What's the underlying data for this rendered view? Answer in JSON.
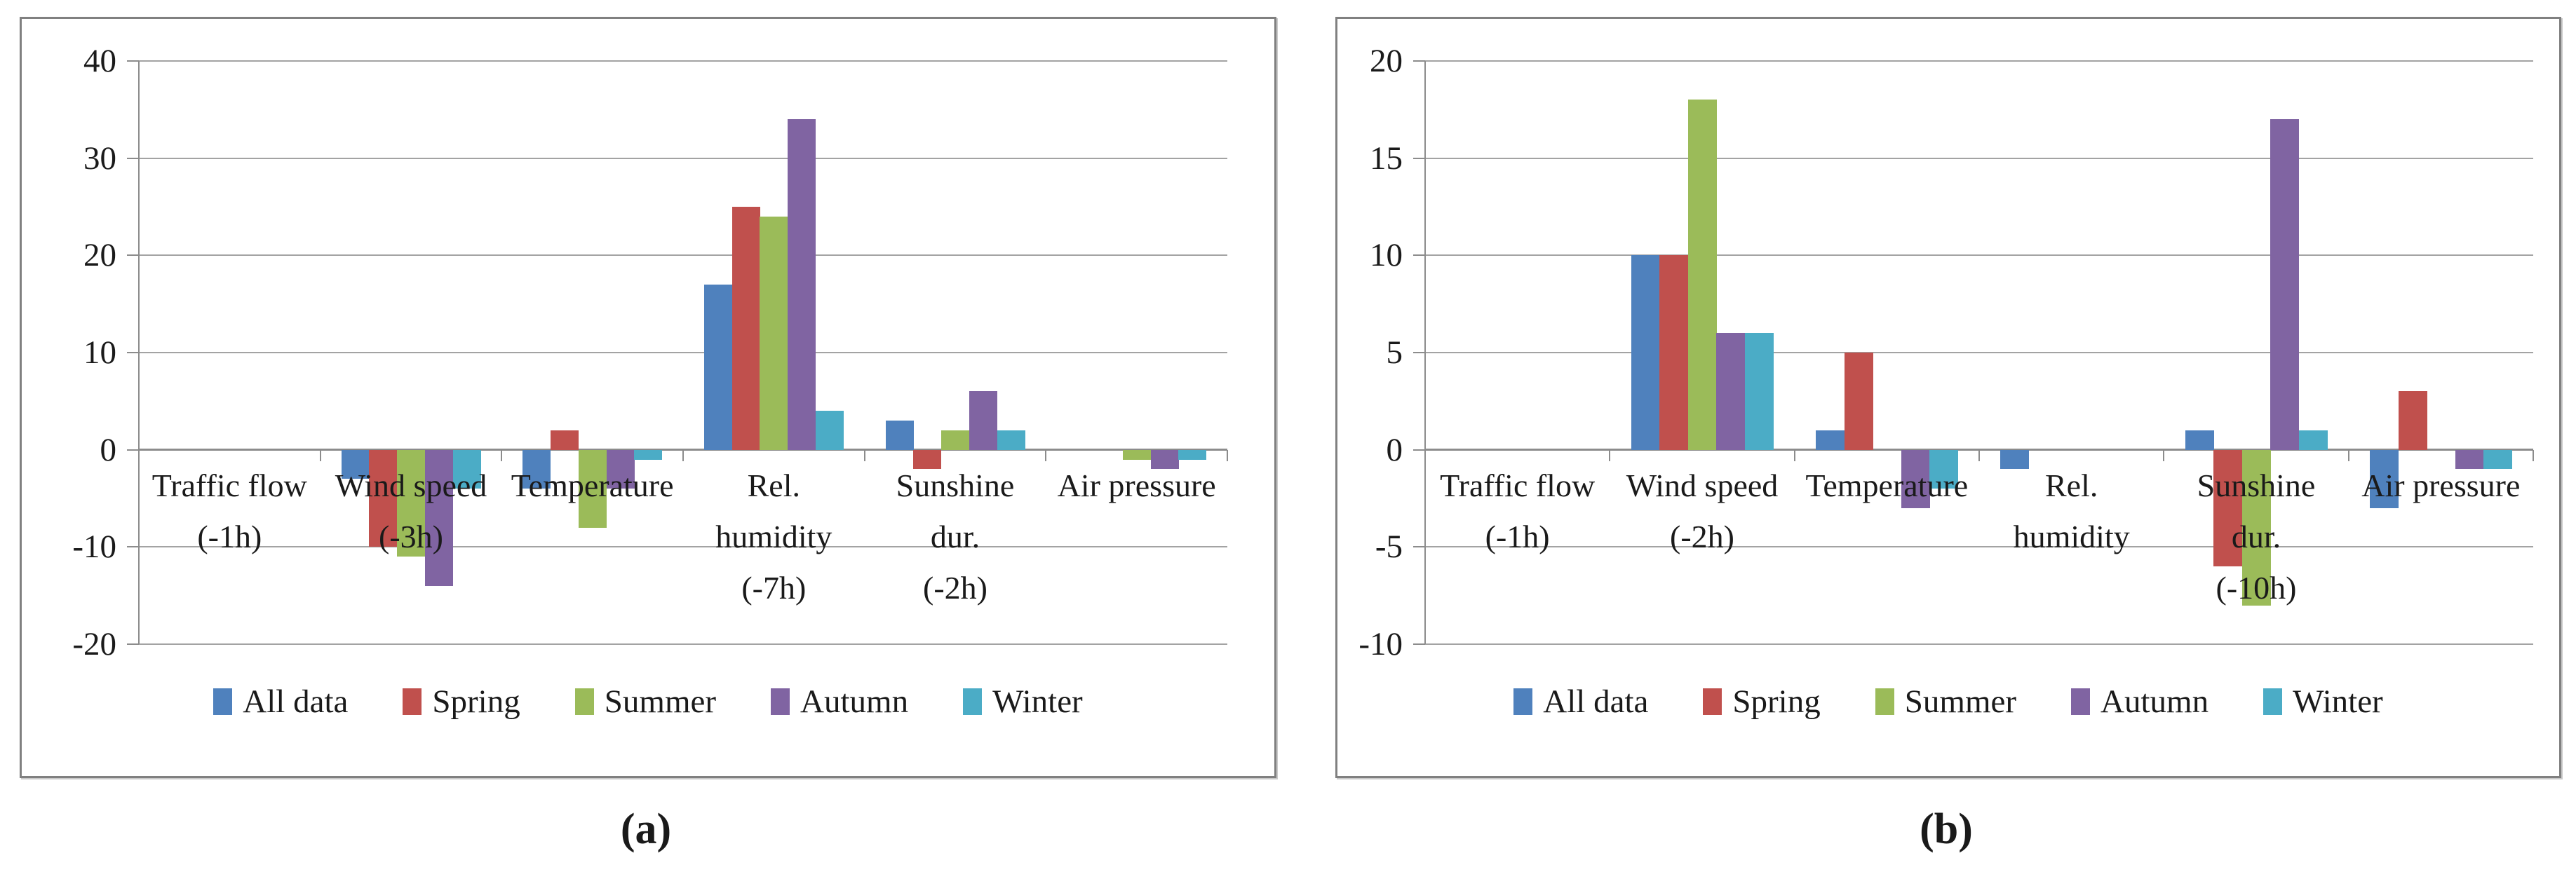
{
  "figure": {
    "caption_a": "(a)",
    "caption_b": "(b)",
    "legend": [
      "All data",
      "Spring",
      "Summer",
      "Autumn",
      "Winter"
    ],
    "series_colors": [
      "#4F81BD",
      "#C0504D",
      "#9BBB59",
      "#8064A2",
      "#4BACC6"
    ],
    "gridline_color": "#a3a3a3",
    "axis_color": "#8c8c8c"
  },
  "chart_data": [
    {
      "type": "bar",
      "panel": "a",
      "title": "",
      "xlabel": "",
      "ylabel": "",
      "grid": true,
      "legend_position": "bottom",
      "ylim": [
        -20,
        40
      ],
      "ytick_step": 10,
      "yticks": [
        40,
        30,
        20,
        10,
        0,
        -10,
        -20
      ],
      "categories": [
        [
          "Traffic flow",
          "(-1h)"
        ],
        [
          "Wind speed",
          "(-3h)"
        ],
        [
          "Temperature"
        ],
        [
          "Rel.",
          "humidity",
          "(-7h)"
        ],
        [
          "Sunshine",
          "dur.",
          "(-2h)"
        ],
        [
          "Air pressure"
        ]
      ],
      "series": [
        {
          "name": "All data",
          "values": [
            0,
            -3,
            -4,
            17,
            3,
            0
          ]
        },
        {
          "name": "Spring",
          "values": [
            0,
            -10,
            2,
            25,
            -2,
            0
          ]
        },
        {
          "name": "Summer",
          "values": [
            0,
            -11,
            -8,
            24,
            2,
            -1
          ]
        },
        {
          "name": "Autumn",
          "values": [
            0,
            -14,
            -4,
            34,
            6,
            -2
          ]
        },
        {
          "name": "Winter",
          "values": [
            0,
            -4,
            -1,
            4,
            2,
            -1
          ]
        }
      ]
    },
    {
      "type": "bar",
      "panel": "b",
      "title": "",
      "xlabel": "",
      "ylabel": "",
      "grid": true,
      "legend_position": "bottom",
      "ylim": [
        -10,
        20
      ],
      "ytick_step": 5,
      "yticks": [
        20,
        15,
        10,
        5,
        0,
        -5,
        -10
      ],
      "categories": [
        [
          "Traffic flow",
          "(-1h)"
        ],
        [
          "Wind speed",
          "(-2h)"
        ],
        [
          "Temperature"
        ],
        [
          "Rel.",
          "humidity"
        ],
        [
          "Sunshine",
          "dur.",
          "(-10h)"
        ],
        [
          "Air pressure"
        ]
      ],
      "series": [
        {
          "name": "All data",
          "values": [
            0,
            10,
            1,
            -1,
            1,
            -3
          ]
        },
        {
          "name": "Spring",
          "values": [
            0,
            10,
            5,
            0,
            -6,
            3
          ]
        },
        {
          "name": "Summer",
          "values": [
            0,
            18,
            0,
            0,
            -8,
            0
          ]
        },
        {
          "name": "Autumn",
          "values": [
            0,
            6,
            -3,
            0,
            17,
            -1
          ]
        },
        {
          "name": "Winter",
          "values": [
            0,
            6,
            -2,
            0,
            1,
            -1
          ]
        }
      ]
    }
  ]
}
